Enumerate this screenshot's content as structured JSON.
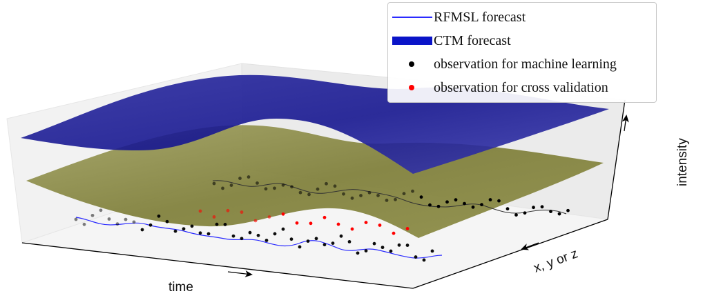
{
  "legend": {
    "items": [
      {
        "label": "RFMSL forecast",
        "symbol": "line",
        "color": "#2b2bff"
      },
      {
        "label": "CTM forecast",
        "symbol": "band",
        "color": "#0a14c8"
      },
      {
        "label": "observation for machine learning",
        "symbol": "dot",
        "color": "#000000"
      },
      {
        "label": "observation for cross validation",
        "symbol": "dot",
        "color": "#ff0000"
      }
    ]
  },
  "axes": {
    "x_label": "time",
    "y_label": "x, y or z",
    "z_label": "intensity"
  },
  "colors": {
    "ctm_surface": "#14148c",
    "lower_surface": "#8c8c3c",
    "rfmsl_line": "#2b2bff",
    "obs_ml": "#000000",
    "obs_cv": "#ff0000"
  }
}
